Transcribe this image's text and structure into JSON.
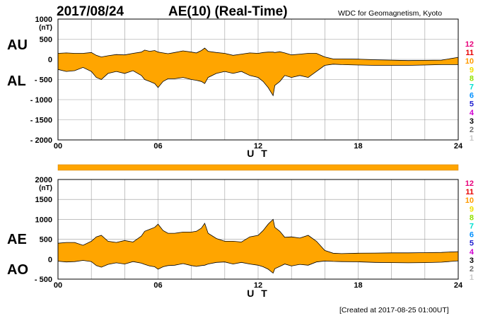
{
  "header": {
    "date": "2017/08/24",
    "title": "AE(10) (Real-Time)",
    "source": "WDC for Geomagnetism, Kyoto"
  },
  "footer": {
    "created": "[Created at 2017-08-25 01:00UT]"
  },
  "colors": {
    "fill": "#ffa500",
    "line": "#000000",
    "grid": "#9a9a9a"
  },
  "station_legend": [
    {
      "label": "12",
      "color": "#e8007a"
    },
    {
      "label": "11",
      "color": "#e80000"
    },
    {
      "label": "10",
      "color": "#ff9a00"
    },
    {
      "label": "9",
      "color": "#f0e000"
    },
    {
      "label": "8",
      "color": "#90e000"
    },
    {
      "label": "7",
      "color": "#00e0d0"
    },
    {
      "label": "6",
      "color": "#0090ff"
    },
    {
      "label": "5",
      "color": "#2020d0"
    },
    {
      "label": "4",
      "color": "#d000d0"
    },
    {
      "label": "3",
      "color": "#000000"
    },
    {
      "label": "2",
      "color": "#707070"
    },
    {
      "label": "1",
      "color": "#c8c8c8"
    }
  ],
  "chart_data": [
    {
      "type": "area",
      "upper_label": "AU",
      "lower_label": "AL",
      "unit": "(nT)",
      "xlabel": "U T",
      "xlim": [
        0,
        24
      ],
      "ylim": [
        -2000,
        1000
      ],
      "xticks": [
        "00",
        "06",
        "12",
        "18",
        "24"
      ],
      "yticks": [
        "1000",
        "500",
        "0",
        "-500",
        "-1000",
        "-1500",
        "-2000"
      ],
      "x": [
        0,
        0.5,
        1,
        1.5,
        2,
        2.3,
        2.6,
        3,
        3.5,
        4,
        4.5,
        5,
        5.2,
        5.5,
        5.8,
        6,
        6.3,
        6.6,
        7,
        7.5,
        8,
        8.3,
        8.6,
        8.8,
        9,
        9.5,
        10,
        10.5,
        11,
        11.5,
        12,
        12.3,
        12.6,
        12.9,
        13,
        13.3,
        13.6,
        14,
        14.5,
        15,
        15.5,
        16,
        16.5,
        17,
        18,
        19,
        20,
        21,
        22,
        23,
        24
      ],
      "series": [
        {
          "name": "AU",
          "values": [
            150,
            160,
            150,
            150,
            170,
            100,
            60,
            90,
            120,
            110,
            150,
            180,
            230,
            200,
            220,
            180,
            160,
            140,
            170,
            210,
            180,
            160,
            220,
            280,
            200,
            170,
            150,
            100,
            130,
            160,
            150,
            170,
            180,
            180,
            170,
            190,
            160,
            110,
            130,
            150,
            150,
            60,
            10,
            10,
            5,
            -10,
            -20,
            -30,
            -25,
            -20,
            50
          ]
        },
        {
          "name": "AL",
          "values": [
            -250,
            -300,
            -280,
            -200,
            -300,
            -450,
            -500,
            -350,
            -300,
            -350,
            -280,
            -400,
            -500,
            -550,
            -600,
            -700,
            -550,
            -480,
            -480,
            -450,
            -500,
            -520,
            -550,
            -600,
            -450,
            -350,
            -300,
            -350,
            -300,
            -400,
            -450,
            -550,
            -700,
            -900,
            -650,
            -550,
            -400,
            -450,
            -400,
            -450,
            -300,
            -150,
            -120,
            -130,
            -140,
            -150,
            -150,
            -150,
            -140,
            -130,
            -130
          ]
        }
      ]
    },
    {
      "type": "area",
      "upper_label": "AE",
      "lower_label": "AO",
      "unit": "(nT)",
      "xlabel": "U T",
      "xlim": [
        0,
        24
      ],
      "ylim": [
        -500,
        2000
      ],
      "xticks": [
        "00",
        "06",
        "12",
        "18",
        "24"
      ],
      "yticks": [
        "2000",
        "1500",
        "1000",
        "500",
        "0",
        "-500"
      ],
      "x": [
        0,
        0.5,
        1,
        1.5,
        2,
        2.3,
        2.6,
        3,
        3.5,
        4,
        4.5,
        5,
        5.2,
        5.5,
        5.8,
        6,
        6.3,
        6.6,
        7,
        7.5,
        8,
        8.3,
        8.6,
        8.8,
        9,
        9.5,
        10,
        10.5,
        11,
        11.5,
        12,
        12.3,
        12.6,
        12.9,
        13,
        13.3,
        13.6,
        14,
        14.5,
        15,
        15.5,
        16,
        16.5,
        17,
        18,
        19,
        20,
        21,
        22,
        23,
        24
      ],
      "series": [
        {
          "name": "AE",
          "values": [
            400,
            420,
            420,
            350,
            450,
            560,
            600,
            450,
            420,
            470,
            430,
            580,
            700,
            750,
            800,
            880,
            720,
            650,
            650,
            680,
            680,
            700,
            780,
            900,
            650,
            520,
            450,
            450,
            430,
            560,
            600,
            720,
            880,
            1000,
            800,
            700,
            550,
            560,
            530,
            600,
            450,
            220,
            150,
            140,
            150,
            155,
            160,
            160,
            165,
            170,
            190
          ]
        },
        {
          "name": "AO",
          "values": [
            -50,
            -70,
            -60,
            -30,
            -60,
            -160,
            -200,
            -130,
            -90,
            -120,
            -60,
            -100,
            -130,
            -170,
            -190,
            -250,
            -190,
            -160,
            -150,
            -110,
            -160,
            -180,
            -160,
            -150,
            -120,
            -80,
            -70,
            -120,
            -80,
            -120,
            -150,
            -190,
            -250,
            -350,
            -240,
            -180,
            -120,
            -170,
            -130,
            -150,
            -70,
            -45,
            -55,
            -60,
            -65,
            -80,
            -85,
            -90,
            -85,
            -75,
            -40
          ]
        }
      ]
    }
  ]
}
